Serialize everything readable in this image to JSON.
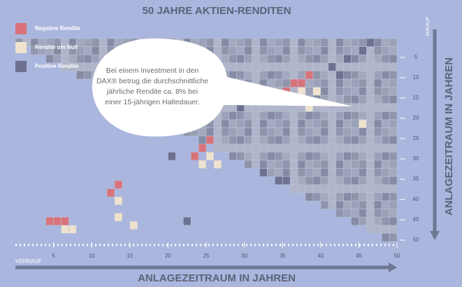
{
  "chart_data": {
    "type": "heatmap",
    "title": "50 JAHRE AKTIEN-RENDITEN",
    "x_label": "ANLAGEZEITRAUM IN JAHREN",
    "y_label": "ANLAGEZEITRAUM IN JAHREN",
    "x_start_label": "VERKAUF",
    "y_start_label": "ANKAUF",
    "annotation": [
      "Bei einem Investment in den",
      "DAX® betrug die durchschnittliche",
      "jährliche Rendite ca. 8% bei",
      "einer 15-jährigen Haltedauer."
    ],
    "xlim": [
      0,
      50
    ],
    "xticks": [
      5,
      10,
      15,
      20,
      25,
      30,
      35,
      40,
      45,
      50
    ],
    "ylim": [
      0,
      50
    ],
    "yticks": [
      5,
      10,
      15,
      20,
      25,
      30,
      35,
      40,
      45,
      50
    ],
    "series": [
      {
        "name": "Negative Rendite",
        "color": "#d9737a",
        "cells": [
          [
            37,
            12
          ],
          [
            38,
            12
          ],
          [
            39,
            10
          ],
          [
            36,
            14
          ],
          [
            25,
            28
          ],
          [
            26,
            26
          ],
          [
            24,
            30
          ],
          [
            14,
            37
          ],
          [
            13,
            39
          ],
          [
            5,
            46
          ],
          [
            6,
            46
          ],
          [
            7,
            46
          ]
        ]
      },
      {
        "name": "Rendite um Null",
        "color": "#efe3cf",
        "cells": [
          [
            36,
            16
          ],
          [
            37,
            16
          ],
          [
            38,
            14
          ],
          [
            39,
            18
          ],
          [
            40,
            14
          ],
          [
            46,
            22
          ],
          [
            26,
            30
          ],
          [
            27,
            32
          ],
          [
            25,
            32
          ],
          [
            14,
            41
          ],
          [
            14,
            45
          ],
          [
            16,
            47
          ],
          [
            7,
            48
          ],
          [
            8,
            48
          ]
        ]
      },
      {
        "name": "Positive Rendite",
        "color": "#6c7290",
        "cells": [
          [
            44,
            6
          ],
          [
            46,
            4
          ],
          [
            47,
            2
          ],
          [
            42,
            8
          ],
          [
            30,
            18
          ],
          [
            33,
            34
          ],
          [
            35,
            36
          ],
          [
            36,
            36
          ],
          [
            23,
            46
          ],
          [
            21,
            30
          ],
          [
            43,
            10
          ]
        ]
      }
    ]
  }
}
